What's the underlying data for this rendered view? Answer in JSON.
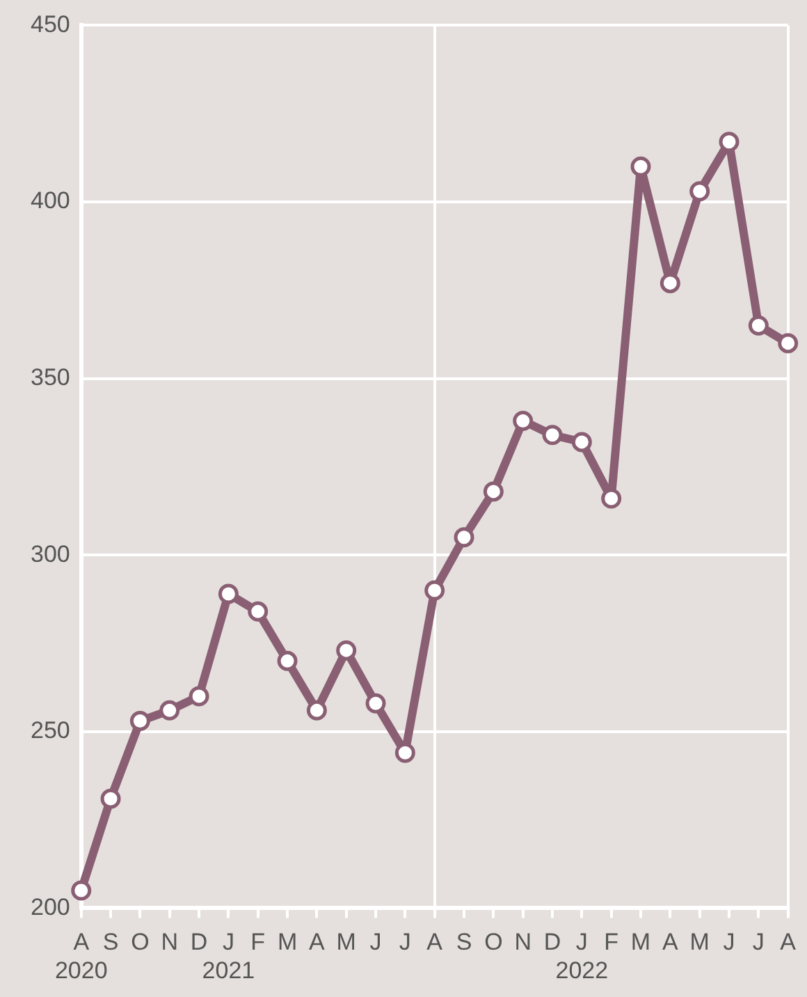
{
  "chart_data": {
    "type": "line",
    "categories": [
      "A\n2020",
      "S",
      "O",
      "N",
      "D",
      "J\n2021",
      "F",
      "M",
      "A",
      "M",
      "J",
      "J",
      "A",
      "S",
      "O",
      "N",
      "D",
      "J\n2022",
      "F",
      "M",
      "A",
      "M",
      "J",
      "J",
      "A"
    ],
    "series": [
      {
        "color": "#8a5f73",
        "values": [
          205,
          231,
          253,
          256,
          260,
          289,
          284,
          270,
          256,
          273,
          258,
          244,
          290,
          305,
          318,
          338,
          334,
          332,
          316,
          410,
          377,
          403,
          417,
          365,
          360
        ]
      }
    ],
    "ylim": [
      200,
      450
    ],
    "yticks": [
      200,
      250,
      300,
      350,
      400,
      450
    ],
    "grid": true,
    "marker": "circle",
    "line_style": "solid",
    "legend": false
  }
}
